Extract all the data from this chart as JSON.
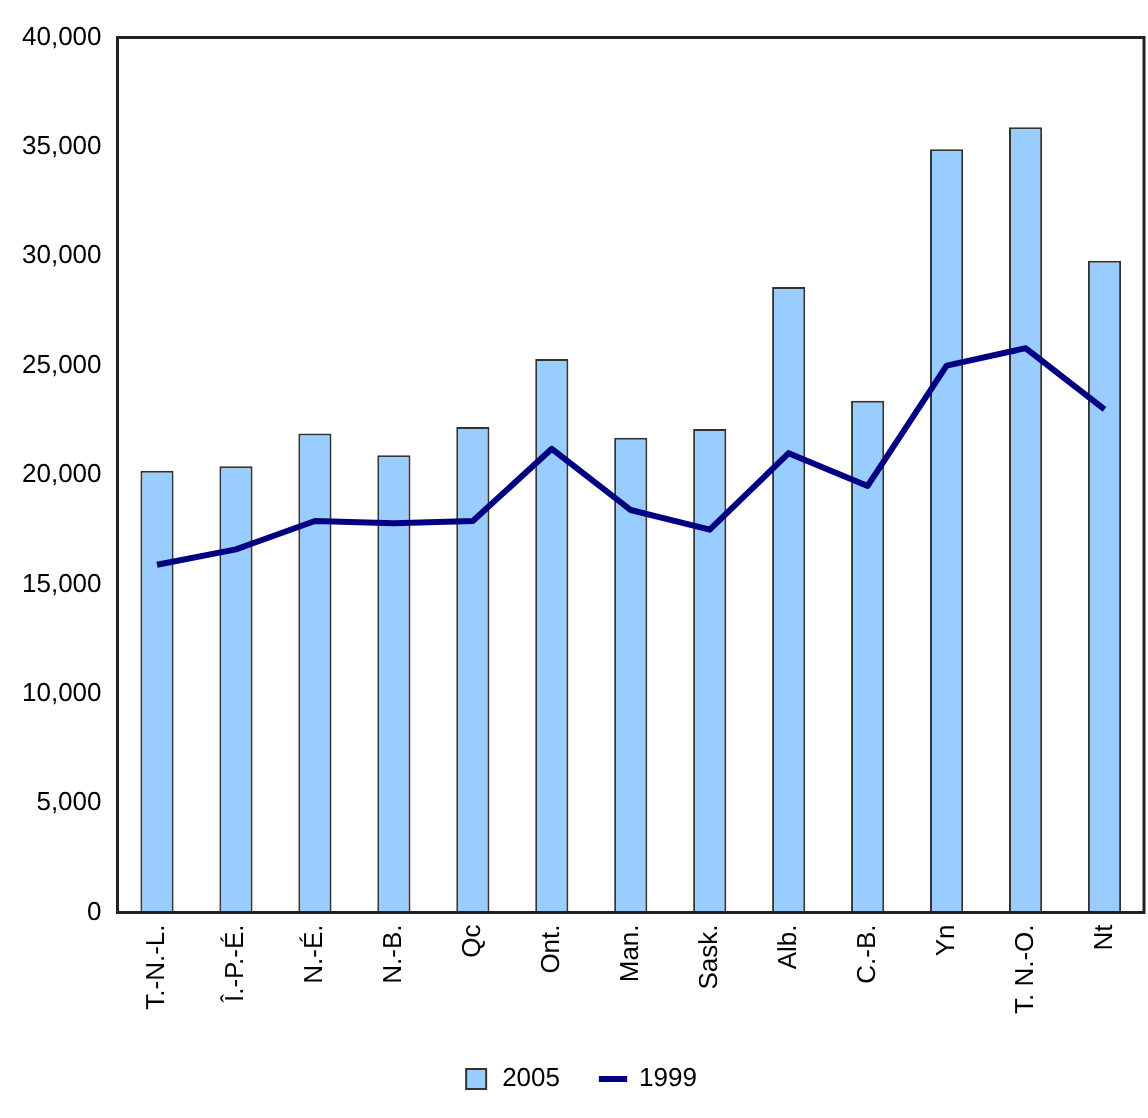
{
  "chart_data": {
    "type": "bar",
    "categories": [
      "T.-N.-L.",
      "Î.-P.-É.",
      "N.-É.",
      "N.-B.",
      "Qc",
      "Ont.",
      "Man.",
      "Sask.",
      "Alb.",
      "C.-B.",
      "Yn",
      "T. N.-O.",
      "Nt"
    ],
    "series": [
      {
        "name": "2005",
        "color": "#99ccff",
        "values": [
          20200,
          20400,
          21900,
          20900,
          22200,
          25300,
          21700,
          22100,
          28600,
          23400,
          34900,
          35900,
          29800
        ]
      },
      {
        "name": "1999",
        "type": "line",
        "color": "#000080",
        "values": [
          15900,
          16600,
          17900,
          17800,
          17900,
          21200,
          18400,
          17500,
          21000,
          19500,
          25000,
          25800,
          23000
        ]
      }
    ],
    "ylim": [
      0,
      40000
    ],
    "yticks": [
      0,
      {
        "value": 5000,
        "label": "5,000"
      },
      {
        "value": 10000,
        "label": "10,000"
      },
      {
        "value": 15000,
        "label": "15,000"
      },
      {
        "value": 20000,
        "label": "20,000"
      },
      {
        "value": 25000,
        "label": "25,000"
      },
      {
        "value": 30000,
        "label": "30,000"
      },
      {
        "value": 35000,
        "label": "35,000"
      },
      {
        "value": 40000,
        "label": "40,000"
      }
    ],
    "legend": "bottom",
    "marker": "none"
  }
}
